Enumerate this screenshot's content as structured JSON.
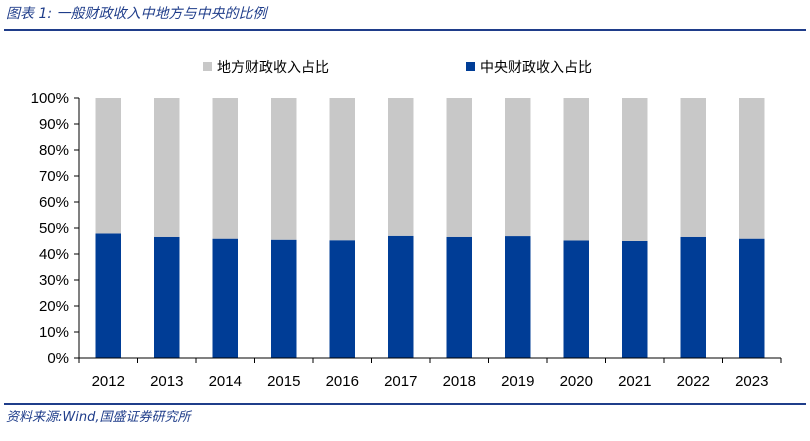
{
  "figure": {
    "title": "图表 1:   一般财政收入中地方与中央的比例",
    "source": "资料来源:Wind,国盛证券研究所"
  },
  "colors": {
    "central": "#003d96",
    "local": "#c8c8c8",
    "accent": "#1f3d8a"
  },
  "chart_data": {
    "type": "bar",
    "stacked": true,
    "categories": [
      "2012",
      "2013",
      "2014",
      "2015",
      "2016",
      "2017",
      "2018",
      "2019",
      "2020",
      "2021",
      "2022",
      "2023"
    ],
    "series": [
      {
        "name": "中央财政收入占比",
        "values": [
          47.9,
          46.6,
          45.9,
          45.5,
          45.3,
          47.0,
          46.6,
          46.9,
          45.2,
          45.0,
          46.6,
          45.9
        ]
      },
      {
        "name": "地方财政收入占比",
        "values": [
          52.1,
          53.4,
          54.1,
          54.5,
          54.7,
          53.0,
          53.4,
          53.1,
          54.8,
          55.0,
          53.4,
          54.1
        ]
      }
    ],
    "yticks": [
      "0%",
      "10%",
      "20%",
      "30%",
      "40%",
      "50%",
      "60%",
      "70%",
      "80%",
      "90%",
      "100%"
    ],
    "ylim": [
      0,
      100
    ],
    "legend": [
      "地方财政收入占比",
      "中央财政收入占比"
    ],
    "legend_position": "top",
    "grid": false
  }
}
